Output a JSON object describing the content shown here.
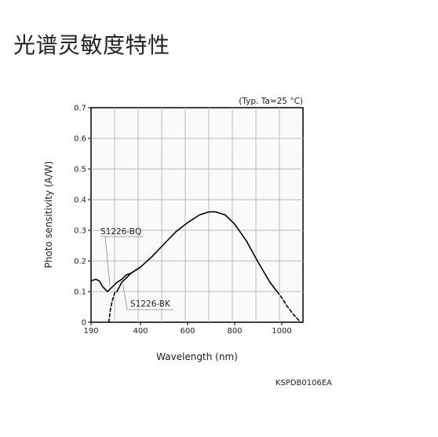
{
  "page": {
    "title": "光谱灵敏度特性"
  },
  "figure_id": "KSPDB0106EA",
  "chart_data": {
    "type": "line",
    "condition": "(Typ. Ta=25 °C)",
    "xlabel": "Wavelength (nm)",
    "ylabel": "Photo sensitivity (A/W)",
    "xlim": [
      190,
      1090
    ],
    "ylim": [
      0,
      0.7
    ],
    "x_ticks": [
      190,
      400,
      600,
      800,
      1000
    ],
    "y_ticks": [
      0,
      0.1,
      0.2,
      0.3,
      0.4,
      0.5,
      0.6,
      0.7
    ],
    "x_tick_labels": [
      "190",
      "400",
      "600",
      "800",
      "1000"
    ],
    "y_tick_labels": [
      "0",
      "0.1",
      "0.2",
      "0.3",
      "0.4",
      "0.5",
      "0.6",
      "0.7"
    ],
    "x_grid": [
      290,
      390,
      490,
      590,
      690,
      790,
      890,
      990
    ],
    "y_grid": [
      0.1,
      0.2,
      0.3,
      0.4,
      0.5,
      0.6
    ],
    "grid": true,
    "series": [
      {
        "name": "S1226-BQ",
        "color": "#000000",
        "points": [
          [
            190,
            0.135
          ],
          [
            210,
            0.14
          ],
          [
            225,
            0.135
          ],
          [
            240,
            0.115
          ],
          [
            260,
            0.1
          ],
          [
            280,
            0.115
          ],
          [
            300,
            0.13
          ],
          [
            320,
            0.14
          ],
          [
            340,
            0.155
          ],
          [
            360,
            0.16
          ],
          [
            380,
            0.17
          ],
          [
            400,
            0.18
          ],
          [
            450,
            0.215
          ],
          [
            500,
            0.255
          ],
          [
            550,
            0.295
          ],
          [
            600,
            0.325
          ],
          [
            650,
            0.35
          ],
          [
            690,
            0.36
          ],
          [
            720,
            0.36
          ],
          [
            760,
            0.35
          ],
          [
            800,
            0.32
          ],
          [
            850,
            0.265
          ],
          [
            900,
            0.195
          ],
          [
            950,
            0.13
          ],
          [
            980,
            0.1
          ]
        ]
      },
      {
        "name": "S1226-BK",
        "color": "#000000",
        "points": [
          [
            300,
            0.1
          ],
          [
            320,
            0.13
          ],
          [
            340,
            0.145
          ],
          [
            360,
            0.16
          ],
          [
            380,
            0.17
          ],
          [
            400,
            0.18
          ]
        ]
      },
      {
        "name": "",
        "color": "#000000",
        "style": "dashed",
        "points": [
          [
            265,
            0.0
          ],
          [
            272,
            0.04
          ],
          [
            280,
            0.07
          ],
          [
            292,
            0.1
          ],
          [
            300,
            0.1
          ]
        ]
      },
      {
        "name": "",
        "color": "#000000",
        "style": "dashed",
        "points": [
          [
            980,
            0.1
          ],
          [
            1000,
            0.08
          ],
          [
            1020,
            0.055
          ],
          [
            1050,
            0.025
          ],
          [
            1080,
            0.0
          ]
        ]
      }
    ],
    "annotations": [
      {
        "text": "S1226-BQ",
        "points_to": [
          270,
          0.12
        ]
      },
      {
        "text": "S1226-BK",
        "points_to": [
          325,
          0.125
        ]
      }
    ]
  }
}
